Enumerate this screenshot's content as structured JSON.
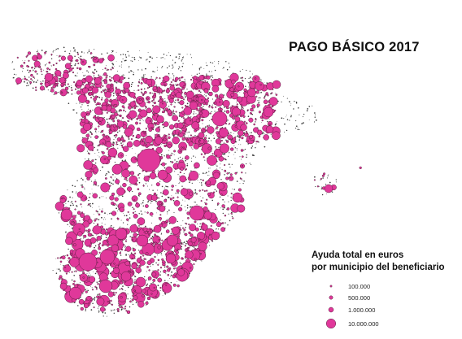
{
  "title": "PAGO BÁSICO 2017",
  "legend": {
    "title_line1": "Ayuda total en euros",
    "title_line2": "por municipio del beneficiario",
    "items": [
      {
        "label": "100.000"
      },
      {
        "label": "500.000"
      },
      {
        "label": "1.000.000"
      },
      {
        "label": "10.000.000"
      }
    ]
  },
  "colors": {
    "bubble_fill": "#e0389a",
    "bubble_stroke": "#5a2040",
    "base_dots": "#3a3a3a",
    "background": "#ffffff"
  }
}
